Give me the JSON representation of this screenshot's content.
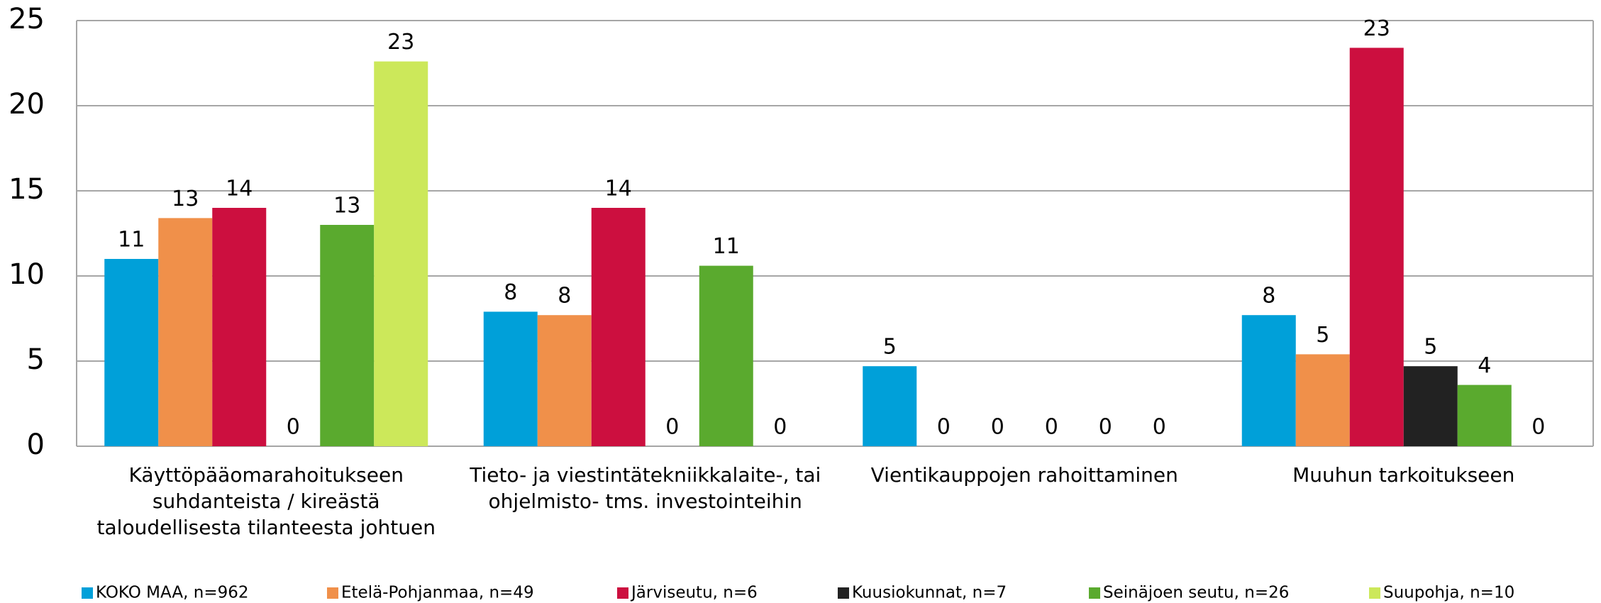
{
  "chart_data": {
    "type": "bar",
    "categories": [
      [
        "Käyttöpääomarahoitukseen",
        "suhdanteista / kireästä",
        "taloudellisesta tilanteesta johtuen"
      ],
      [
        "Tieto- ja viestintätekniikkalaite-, tai",
        "ohjelmisto- tms. investointeihin"
      ],
      [
        "Vientikauppojen rahoittaminen"
      ],
      [
        "Muuhun tarkoitukseen"
      ]
    ],
    "series": [
      {
        "name": "KOKO MAA, n=962",
        "color": "#00a0d9",
        "values": [
          11,
          7.9,
          4.7,
          7.7
        ],
        "value_labels": [
          "11",
          "8",
          "5",
          "8"
        ]
      },
      {
        "name": "Etelä-Pohjanmaa, n=49",
        "color": "#f0904a",
        "values": [
          13.4,
          7.7,
          0,
          5.4
        ],
        "value_labels": [
          "13",
          "8",
          "0",
          "5"
        ]
      },
      {
        "name": "Järviseutu, n=6",
        "color": "#cc0f3f",
        "values": [
          14,
          14,
          0,
          23.4
        ],
        "value_labels": [
          "14",
          "14",
          "0",
          "23"
        ]
      },
      {
        "name": "Kuusiokunnat, n=7",
        "color": "#222222",
        "values": [
          0,
          0,
          0,
          4.7
        ],
        "value_labels": [
          "0",
          "0",
          "0",
          "5"
        ]
      },
      {
        "name": "Seinäjoen seutu, n=26",
        "color": "#5aaa2e",
        "values": [
          13,
          10.6,
          0,
          3.6
        ],
        "value_labels": [
          "13",
          "11",
          "0",
          "4"
        ]
      },
      {
        "name": "Suupohja, n=10",
        "color": "#cce85a",
        "values": [
          22.6,
          0,
          0,
          0
        ],
        "value_labels": [
          "23",
          "0",
          "0",
          "0"
        ]
      }
    ],
    "ylim": [
      0,
      25
    ],
    "yticks": [
      0,
      5,
      10,
      15,
      20,
      25
    ],
    "grid": true,
    "legend": "bottom"
  }
}
